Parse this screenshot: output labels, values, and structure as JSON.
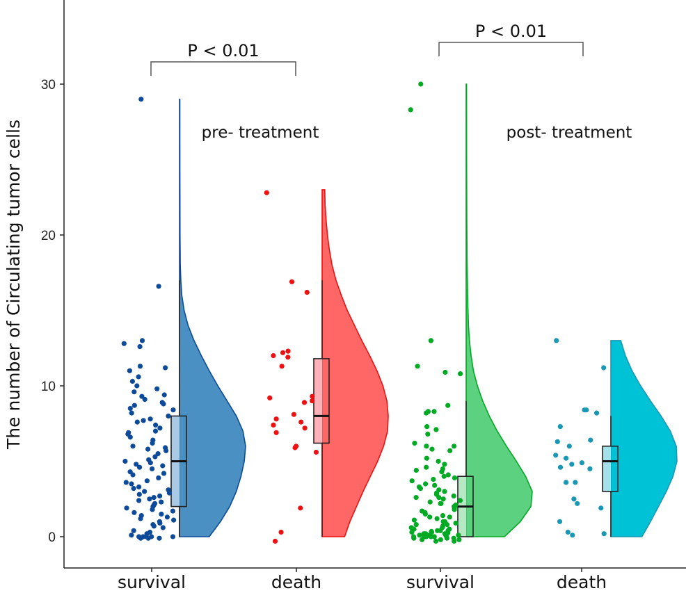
{
  "chart_data": {
    "type": "raincloud",
    "title": "",
    "xlabel": "",
    "ylabel": "The number of Circulating tumor cells",
    "ylim": [
      -2,
      35
    ],
    "yticks": [
      0,
      10,
      20,
      30
    ],
    "grid": false,
    "legend": "none",
    "categories": [
      "survival",
      "death",
      "survival",
      "death"
    ],
    "annotations": [
      {
        "text": "pre- treatment",
        "near_category": 0
      },
      {
        "text": "post- treatment",
        "near_category": 2
      }
    ],
    "comparisons": [
      {
        "from": 0,
        "to": 1,
        "label": "P < 0.01",
        "y": 31.5
      },
      {
        "from": 2,
        "to": 3,
        "label": "P < 0.01",
        "y": 32.5
      }
    ],
    "series": [
      {
        "name": "pre-treatment survival",
        "color": "#0d4a99",
        "fill": "#4a90c2",
        "box_fill": "#a9c9e4",
        "box": {
          "min": 0,
          "q1": 2,
          "median": 5,
          "q3": 8,
          "max": 17
        },
        "violin_max": 29,
        "density": [
          [
            0,
            0.45
          ],
          [
            1,
            0.62
          ],
          [
            2,
            0.76
          ],
          [
            3,
            0.86
          ],
          [
            4,
            0.93
          ],
          [
            5,
            0.98
          ],
          [
            6,
            1.0
          ],
          [
            7,
            0.96
          ],
          [
            8,
            0.86
          ],
          [
            9,
            0.72
          ],
          [
            10,
            0.58
          ],
          [
            11,
            0.45
          ],
          [
            12,
            0.33
          ],
          [
            13,
            0.22
          ],
          [
            14,
            0.13
          ],
          [
            15,
            0.07
          ],
          [
            16,
            0.035
          ],
          [
            17,
            0.02
          ],
          [
            18,
            0.012
          ],
          [
            20,
            0.008
          ],
          [
            24,
            0.006
          ],
          [
            29,
            0.005
          ]
        ],
        "points": [
          29,
          16.6,
          13,
          12.8,
          12.6,
          11.3,
          11.2,
          11.0,
          10.6,
          10.3,
          10.0,
          9.8,
          9.6,
          9.4,
          9.1,
          8.9,
          8.8,
          8.7,
          8.5,
          8.2,
          8.0,
          7.8,
          7.6,
          7.4,
          7.2,
          7.0,
          6.8,
          6.6,
          6.4,
          6.2,
          6.0,
          5.9,
          5.7,
          5.5,
          5.3,
          5.1,
          5.0,
          4.9,
          4.8,
          4.7,
          4.5,
          4.3,
          4.1,
          3.9,
          3.7,
          3.5,
          3.3,
          3.1,
          3.0,
          2.9,
          2.8,
          2.6,
          2.4,
          2.3,
          2.2,
          2.1,
          2.0,
          1.9,
          1.8,
          1.7,
          1.5,
          1.3,
          1.2,
          1.1,
          1.0,
          0.9,
          0.8,
          0.6,
          0.4,
          0.3,
          0.2,
          0.1,
          0,
          0,
          0,
          0,
          0,
          -0.1,
          -0.1,
          -0.1,
          2.5,
          3.6,
          4.2,
          5.8,
          6.9,
          7.7,
          8.4,
          9.3,
          1.4,
          0.7,
          3.2,
          4.6,
          2.7,
          1.6
        ]
      },
      {
        "name": "pre-treatment death",
        "color": "#ee1111",
        "fill": "#ff6666",
        "box_fill": "#ffb3b8",
        "box": {
          "min": 0,
          "q1": 6.2,
          "median": 8,
          "q3": 11.8,
          "max": 17
        },
        "violin_max": 23,
        "density": [
          [
            0,
            0.34
          ],
          [
            1,
            0.42
          ],
          [
            2,
            0.52
          ],
          [
            3,
            0.62
          ],
          [
            4,
            0.73
          ],
          [
            5,
            0.84
          ],
          [
            6,
            0.93
          ],
          [
            7,
            0.99
          ],
          [
            8,
            1.0
          ],
          [
            9,
            0.98
          ],
          [
            10,
            0.92
          ],
          [
            11,
            0.83
          ],
          [
            12,
            0.72
          ],
          [
            13,
            0.6
          ],
          [
            14,
            0.49
          ],
          [
            15,
            0.38
          ],
          [
            16,
            0.29
          ],
          [
            17,
            0.21
          ],
          [
            18,
            0.15
          ],
          [
            19,
            0.11
          ],
          [
            20,
            0.08
          ],
          [
            21,
            0.06
          ],
          [
            22,
            0.045
          ],
          [
            23,
            0.04
          ]
        ],
        "points": [
          22.8,
          16.9,
          16.2,
          12.3,
          12.2,
          12.0,
          11.9,
          11.3,
          9.3,
          9.2,
          9.0,
          8.9,
          8.1,
          7.8,
          7.6,
          7.4,
          7.2,
          6.9,
          6.0,
          5.9,
          5.6,
          1.9,
          0.3,
          -0.3
        ]
      },
      {
        "name": "post-treatment survival",
        "color": "#00aa22",
        "fill": "#5cd17f",
        "box_fill": "#b5e8c3",
        "box": {
          "min": 0,
          "q1": 0,
          "median": 2,
          "q3": 4,
          "max": 9
        },
        "violin_max": 30,
        "density": [
          [
            0,
            0.58
          ],
          [
            1,
            0.82
          ],
          [
            2,
            0.98
          ],
          [
            3,
            1.0
          ],
          [
            4,
            0.9
          ],
          [
            5,
            0.76
          ],
          [
            6,
            0.61
          ],
          [
            7,
            0.47
          ],
          [
            8,
            0.35
          ],
          [
            9,
            0.25
          ],
          [
            10,
            0.17
          ],
          [
            11,
            0.11
          ],
          [
            12,
            0.075
          ],
          [
            13,
            0.05
          ],
          [
            14,
            0.035
          ],
          [
            16,
            0.022
          ],
          [
            18,
            0.015
          ],
          [
            21,
            0.01
          ],
          [
            25,
            0.007
          ],
          [
            30,
            0.006
          ]
        ],
        "points": [
          30,
          28.3,
          13,
          11.3,
          10.9,
          10.8,
          8.7,
          8.3,
          8.3,
          8.2,
          7.3,
          7.1,
          6.8,
          6.2,
          6.0,
          6.0,
          5.8,
          5.7,
          5.2,
          5.0,
          4.8,
          4.6,
          4.5,
          4.3,
          4.1,
          4.0,
          3.9,
          3.8,
          3.7,
          3.5,
          3.4,
          3.3,
          3.2,
          3.0,
          2.9,
          2.8,
          2.7,
          2.6,
          2.5,
          2.4,
          2.3,
          2.2,
          2.1,
          2.0,
          1.9,
          1.8,
          1.7,
          1.6,
          1.5,
          1.4,
          1.3,
          1.2,
          1.1,
          1.0,
          0.9,
          0.8,
          0.7,
          0.6,
          0.5,
          0.4,
          0.35,
          0.3,
          0.25,
          0.2,
          0.15,
          0.1,
          0.05,
          0,
          0,
          0,
          0,
          0,
          -0.1,
          -0.1,
          -0.2,
          -0.2,
          -0.3,
          -0.3,
          0.4,
          0.6,
          0.2,
          0.1,
          0.3,
          1.0,
          2.6,
          3.1,
          0,
          0.2,
          -0.1,
          0.5,
          1.3,
          2.2,
          4.4,
          0.8,
          0.1,
          0.4,
          -0.2,
          0
        ]
      },
      {
        "name": "post-treatment death",
        "color": "#1a97b3",
        "fill": "#00c2d6",
        "box_fill": "#a3e0ea",
        "box": {
          "min": 0,
          "q1": 3,
          "median": 5,
          "q3": 6,
          "max": 8
        },
        "violin_max": 13,
        "density": [
          [
            0,
            0.47
          ],
          [
            1,
            0.6
          ],
          [
            2,
            0.72
          ],
          [
            3,
            0.84
          ],
          [
            4,
            0.94
          ],
          [
            5,
            1.0
          ],
          [
            6,
            0.99
          ],
          [
            7,
            0.9
          ],
          [
            8,
            0.76
          ],
          [
            9,
            0.6
          ],
          [
            10,
            0.45
          ],
          [
            11,
            0.32
          ],
          [
            12,
            0.22
          ],
          [
            13,
            0.15
          ]
        ],
        "points": [
          13,
          11.2,
          8.4,
          8.4,
          8.2,
          7.3,
          6.4,
          6.3,
          6.0,
          5.4,
          5.2,
          4.9,
          4.8,
          4.6,
          4.5,
          3.6,
          3.6,
          2.5,
          2.2,
          1.9,
          1.0,
          0.3,
          0.2,
          0.1
        ]
      }
    ]
  }
}
